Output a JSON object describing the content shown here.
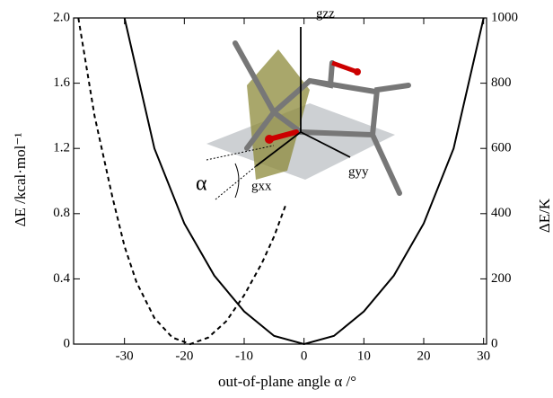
{
  "chart_data": {
    "type": "line",
    "xlabel": "out-of-plane angle α /°",
    "ylabel": "ΔE /kcal·mol⁻¹",
    "y2label": "ΔE/K",
    "xlim": [
      -38.5,
      30.5
    ],
    "xticks": [
      -30,
      -20,
      -10,
      0,
      10,
      20,
      30
    ],
    "ylim": [
      0,
      2.0
    ],
    "yticks": [
      0,
      0.4,
      0.8,
      1.2,
      1.6,
      {
        "value": 2.0,
        "label": "2.0"
      }
    ],
    "y2lim": [
      0,
      1000
    ],
    "y2ticks": [
      0,
      200,
      400,
      600,
      800,
      1000
    ],
    "series": [
      {
        "color": "#000000",
        "dash": false,
        "x": [
          -30,
          -25,
          -20,
          -15,
          -10,
          -5,
          0,
          5,
          10,
          15,
          20,
          25,
          30
        ],
        "values": [
          2.0,
          1.2,
          0.74,
          0.42,
          0.2,
          0.05,
          0,
          0.05,
          0.2,
          0.42,
          0.74,
          1.2,
          2.0
        ]
      },
      {
        "color": "#000000",
        "dash": true,
        "x": [
          -37.7,
          -35,
          -32,
          -30,
          -28,
          -25,
          -22,
          -19,
          -16,
          -13,
          -10,
          -7,
          -5,
          -3
        ],
        "values": [
          2.0,
          1.4,
          0.9,
          0.6,
          0.38,
          0.16,
          0.04,
          0,
          0.04,
          0.14,
          0.3,
          0.5,
          0.66,
          0.86
        ]
      }
    ],
    "annotations": [
      "gzz",
      "gyy",
      "gxx",
      "α"
    ]
  }
}
